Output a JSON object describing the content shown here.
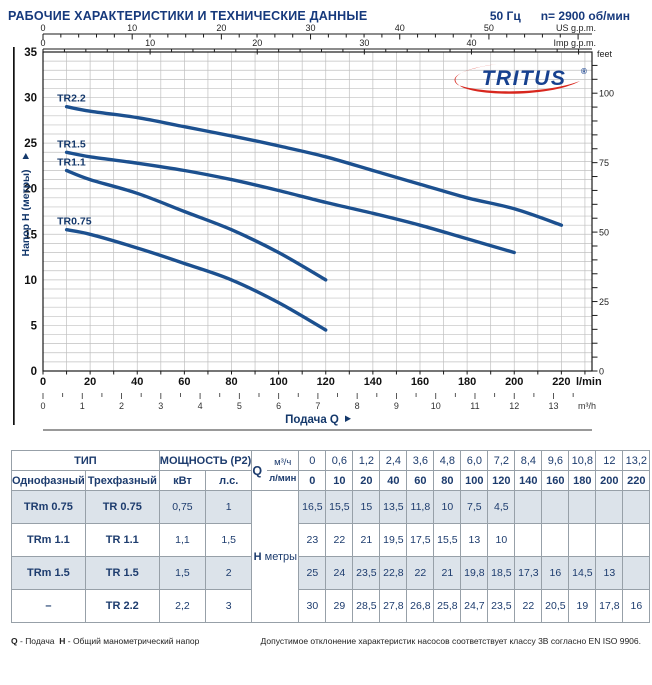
{
  "header": {
    "title": "РАБОЧИЕ ХАРАКТЕРИСТИКИ И ТЕХНИЧЕСКИЕ ДАННЫЕ",
    "frequency": "50 Гц",
    "speed": "n= 2900 об/мин"
  },
  "chart_data": {
    "type": "line",
    "brand": "TRITUS",
    "brand_registered": "®",
    "x_axis": {
      "label": "Подача Q",
      "unit": "l/min",
      "range_lmin": [
        0,
        233
      ],
      "label_step_lmin": 20,
      "max_label_lmin": 220,
      "grid_step_lmin": 10
    },
    "y_axis": {
      "label": "Напор H (метры)",
      "range_m": [
        0,
        35
      ],
      "label_step_m": 5,
      "grid_step_m": 1
    },
    "secondary_x_scales": [
      {
        "name": "US g.p.m.",
        "lmin_per_unit": 3.785,
        "tick_step": 2,
        "label_step": 10,
        "max_label": 50
      },
      {
        "name": "Imp g.p.m.",
        "lmin_per_unit": 4.546,
        "tick_step": 2,
        "label_step": 10,
        "max_label": 40
      },
      {
        "name": "m³/h",
        "lmin_per_unit": 16.667,
        "tick_step": 0.5,
        "label_step": 1,
        "max_label": 13
      }
    ],
    "secondary_y_scale": {
      "name": "feet",
      "m_per_unit": 0.3048,
      "tick_step": 5,
      "label_step": 25,
      "max_label": 100
    },
    "series": [
      {
        "name": "TR2.2",
        "points_lmin_m": [
          [
            10,
            29
          ],
          [
            20,
            28.5
          ],
          [
            40,
            27.8
          ],
          [
            60,
            26.8
          ],
          [
            80,
            25.8
          ],
          [
            100,
            24.7
          ],
          [
            120,
            23.5
          ],
          [
            140,
            22
          ],
          [
            160,
            20.5
          ],
          [
            180,
            19
          ],
          [
            200,
            17.8
          ],
          [
            220,
            16
          ]
        ]
      },
      {
        "name": "TR1.5",
        "points_lmin_m": [
          [
            10,
            24
          ],
          [
            20,
            23.5
          ],
          [
            40,
            22.8
          ],
          [
            60,
            22
          ],
          [
            80,
            21
          ],
          [
            100,
            19.8
          ],
          [
            120,
            18.5
          ],
          [
            140,
            17.3
          ],
          [
            160,
            16
          ],
          [
            180,
            14.5
          ],
          [
            200,
            13
          ]
        ]
      },
      {
        "name": "TR1.1",
        "points_lmin_m": [
          [
            10,
            22
          ],
          [
            20,
            21
          ],
          [
            40,
            19.5
          ],
          [
            60,
            17.5
          ],
          [
            80,
            15.5
          ],
          [
            100,
            13
          ],
          [
            120,
            10
          ]
        ]
      },
      {
        "name": "TR0.75",
        "points_lmin_m": [
          [
            10,
            15.5
          ],
          [
            20,
            15
          ],
          [
            40,
            13.5
          ],
          [
            60,
            11.8
          ],
          [
            80,
            10
          ],
          [
            100,
            7.5
          ],
          [
            120,
            4.5
          ]
        ]
      }
    ],
    "colors": {
      "curve": "#1c508f",
      "grid": "#c0c0c0",
      "axis": "#1a1a1a",
      "label_navy": "#14386b",
      "brand_blue": "#17418f",
      "brand_red": "#d8261d"
    }
  },
  "table": {
    "headers": {
      "type_group": "ТИП",
      "power_group": "МОЩНОСТЬ (P2)",
      "single_phase": "Однофазный",
      "three_phase": "Трехфазный",
      "kw": "кВт",
      "hp": "л.с.",
      "q": "Q",
      "m3h": "м³/ч",
      "lmin": "л/мин",
      "h_bold": "H",
      "h_unit": "метры"
    },
    "flow_m3h": [
      "0",
      "0,6",
      "1,2",
      "2,4",
      "3,6",
      "4,8",
      "6,0",
      "7,2",
      "8,4",
      "9,6",
      "10,8",
      "12",
      "13,2"
    ],
    "flow_lmin": [
      "0",
      "10",
      "20",
      "40",
      "60",
      "80",
      "100",
      "120",
      "140",
      "160",
      "180",
      "200",
      "220"
    ],
    "rows": [
      {
        "single": "TRm 0.75",
        "three": "TR 0.75",
        "kw": "0,75",
        "hp": "1",
        "h": [
          "16,5",
          "15,5",
          "15",
          "13,5",
          "11,8",
          "10",
          "7,5",
          "4,5",
          "",
          "",
          "",
          "",
          ""
        ]
      },
      {
        "single": "TRm 1.1",
        "three": "TR 1.1",
        "kw": "1,1",
        "hp": "1,5",
        "h": [
          "23",
          "22",
          "21",
          "19,5",
          "17,5",
          "15,5",
          "13",
          "10",
          "",
          "",
          "",
          "",
          ""
        ]
      },
      {
        "single": "TRm 1.5",
        "three": "TR 1.5",
        "kw": "1,5",
        "hp": "2",
        "h": [
          "25",
          "24",
          "23,5",
          "22,8",
          "22",
          "21",
          "19,8",
          "18,5",
          "17,3",
          "16",
          "14,5",
          "13",
          ""
        ]
      },
      {
        "single": "–",
        "three": "TR 2.2",
        "kw": "2,2",
        "hp": "3",
        "h": [
          "30",
          "29",
          "28,5",
          "27,8",
          "26,8",
          "25,8",
          "24,7",
          "23,5",
          "22",
          "20,5",
          "19",
          "17,8",
          "16"
        ]
      }
    ]
  },
  "footer": {
    "left_q": "Q",
    "left_q_text": "- Подача",
    "left_h": "H",
    "left_h_text": "- Общий манометрический напор",
    "right": "Допустимое отклонение характеристик насосов соответствует классу 3B согласно EN ISO 9906."
  }
}
